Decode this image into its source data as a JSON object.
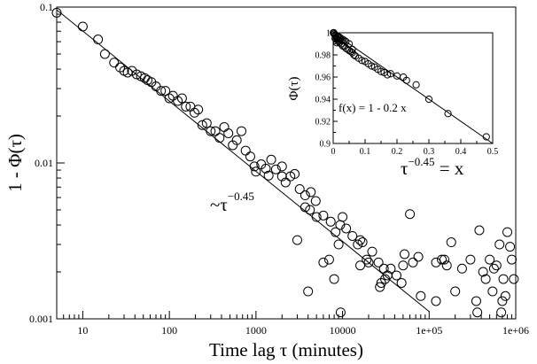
{
  "chart_data": [
    {
      "type": "scatter",
      "scale": {
        "x": "log",
        "y": "log"
      },
      "xlim": [
        5,
        1000000
      ],
      "ylim": [
        0.001,
        0.1
      ],
      "xlabel": "Time lag τ (minutes)",
      "ylabel": "1 - Φ(τ)",
      "x_ticks": [
        {
          "value": 10,
          "label": "10"
        },
        {
          "value": 100,
          "label": "100"
        },
        {
          "value": 1000,
          "label": "1000"
        },
        {
          "value": 10000,
          "label": "10000"
        },
        {
          "value": 100000,
          "label": "1e+05"
        },
        {
          "value": 1000000,
          "label": "1e+06"
        }
      ],
      "y_ticks": [
        {
          "value": 0.001,
          "label": "0.001"
        },
        {
          "value": 0.01,
          "label": "0.01"
        },
        {
          "value": 0.1,
          "label": "0.1"
        }
      ],
      "annotation": {
        "text": "~τ",
        "exponent": "−0.45"
      },
      "fit_line": {
        "amplitude": 0.198,
        "exponent": -0.45,
        "x_range": [
          5,
          100000
        ]
      },
      "series": [
        {
          "marker": "open-circle",
          "points": [
            [
              5,
              0.092
            ],
            [
              10,
              0.075
            ],
            [
              15,
              0.062
            ],
            [
              18,
              0.05
            ],
            [
              23,
              0.044
            ],
            [
              27,
              0.041
            ],
            [
              30,
              0.039
            ],
            [
              33,
              0.038
            ],
            [
              37,
              0.039
            ],
            [
              42,
              0.037
            ],
            [
              47,
              0.036
            ],
            [
              52,
              0.035
            ],
            [
              56,
              0.034
            ],
            [
              62,
              0.033
            ],
            [
              70,
              0.031
            ],
            [
              80,
              0.029
            ],
            [
              90,
              0.029
            ],
            [
              100,
              0.026
            ],
            [
              110,
              0.027
            ],
            [
              125,
              0.025
            ],
            [
              140,
              0.026
            ],
            [
              155,
              0.023
            ],
            [
              175,
              0.023
            ],
            [
              195,
              0.021
            ],
            [
              215,
              0.022
            ],
            [
              240,
              0.0175
            ],
            [
              270,
              0.018
            ],
            [
              300,
              0.016
            ],
            [
              340,
              0.016
            ],
            [
              380,
              0.0145
            ],
            [
              430,
              0.017
            ],
            [
              480,
              0.0155
            ],
            [
              540,
              0.013
            ],
            [
              600,
              0.014
            ],
            [
              680,
              0.016
            ],
            [
              760,
              0.012
            ],
            [
              860,
              0.011
            ],
            [
              960,
              0.0095
            ],
            [
              1000,
              0.0088
            ],
            [
              1150,
              0.0098
            ],
            [
              1300,
              0.0092
            ],
            [
              1500,
              0.0105
            ],
            [
              1700,
              0.0091
            ],
            [
              2000,
              0.0095
            ],
            [
              2200,
              0.0075
            ],
            [
              2500,
              0.0082
            ],
            [
              2800,
              0.0085
            ],
            [
              3200,
              0.0068
            ],
            [
              3700,
              0.0062
            ],
            [
              4300,
              0.0065
            ],
            [
              4900,
              0.0057
            ],
            [
              2000,
              0.0082
            ],
            [
              1400,
              0.0083
            ],
            [
              10000,
              0.0045
            ],
            [
              3700,
              0.0052
            ],
            [
              4200,
              0.005
            ],
            [
              5000,
              0.0045
            ],
            [
              6000,
              0.0046
            ],
            [
              7300,
              0.0042
            ],
            [
              8300,
              0.0036
            ],
            [
              9400,
              0.004
            ],
            [
              11000,
              0.0038
            ],
            [
              13000,
              0.0034
            ],
            [
              16000,
              0.0032
            ],
            [
              19000,
              0.0024
            ],
            [
              22000,
              0.0027
            ],
            [
              26000,
              0.0023
            ],
            [
              30000,
              0.0021
            ],
            [
              36000,
              0.0021
            ],
            [
              42000,
              0.0019
            ],
            [
              48000,
              0.0017
            ],
            [
              3000,
              0.0032
            ],
            [
              4000,
              0.0015
            ],
            [
              6000,
              0.0023
            ],
            [
              8000,
              0.0018
            ],
            [
              9000,
              0.003
            ],
            [
              15000,
              0.003
            ],
            [
              28000,
              0.0017
            ],
            [
              31000,
              0.0018
            ],
            [
              33000,
              0.0019
            ],
            [
              50000,
              0.0022
            ],
            [
              52000,
              0.0026
            ],
            [
              60000,
              0.0047
            ],
            [
              65000,
              0.0023
            ],
            [
              75000,
              0.0025
            ],
            [
              80000,
              0.0014
            ],
            [
              7000,
              0.0024
            ],
            [
              17000,
              0.0031
            ],
            [
              16000,
              0.0022
            ],
            [
              20000,
              0.0023
            ],
            [
              27000,
              0.0016
            ],
            [
              9500,
              0.0011
            ],
            [
              120000,
              0.0013
            ],
            [
              150000,
              0.0024
            ],
            [
              160000,
              0.0022
            ],
            [
              180000,
              0.0031
            ],
            [
              200000,
              0.0015
            ],
            [
              240000,
              0.0021
            ],
            [
              300000,
              0.0024
            ],
            [
              350000,
              0.0013
            ],
            [
              360000,
              0.0011
            ],
            [
              380000,
              0.0037
            ],
            [
              420000,
              0.002
            ],
            [
              450000,
              0.0018
            ],
            [
              500000,
              0.0024
            ],
            [
              540000,
              0.0015
            ],
            [
              560000,
              0.0021
            ],
            [
              600000,
              0.0022
            ],
            [
              680000,
              0.0011
            ],
            [
              720000,
              0.0018
            ],
            [
              760000,
              0.0014
            ],
            [
              800000,
              0.0036
            ],
            [
              860000,
              0.0029
            ],
            [
              900000,
              0.0024
            ],
            [
              950000,
              0.0018
            ],
            [
              120000,
              0.0023
            ],
            [
              140000,
              0.0024
            ],
            [
              650000,
              0.003
            ],
            [
              700000,
              0.0013
            ]
          ]
        }
      ]
    },
    {
      "type": "scatter",
      "scale": {
        "x": "linear",
        "y": "linear"
      },
      "xlim": [
        0,
        0.5
      ],
      "ylim": [
        0.9,
        1.0
      ],
      "xlabel": "τ^−0.45 = x",
      "ylabel": "Φ(τ)",
      "x_ticks": [
        {
          "value": 0,
          "label": "0"
        },
        {
          "value": 0.1,
          "label": "0.1"
        },
        {
          "value": 0.2,
          "label": "0.2"
        },
        {
          "value": 0.3,
          "label": "0.3"
        },
        {
          "value": 0.4,
          "label": "0.4"
        },
        {
          "value": 0.5,
          "label": "0.5"
        }
      ],
      "y_ticks": [
        {
          "value": 0.9,
          "label": "0.9"
        },
        {
          "value": 0.92,
          "label": "0.92"
        },
        {
          "value": 0.94,
          "label": "0.94"
        },
        {
          "value": 0.96,
          "label": "0.96"
        },
        {
          "value": 0.98,
          "label": "0.98"
        },
        {
          "value": 1.0,
          "label": "1"
        }
      ],
      "annotation": "f(x) = 1 - 0.2 x",
      "xlabel_parts": {
        "base": "τ",
        "exponent": "−0.45",
        "rest": " = x"
      },
      "fit_line": {
        "intercept": 1,
        "slope": -0.2,
        "x_range": [
          0,
          0.5
        ]
      },
      "series": [
        {
          "marker": "open-circle",
          "points": [
            [
              0.48,
              0.906
            ],
            [
              0.36,
              0.927
            ],
            [
              0.3,
              0.94
            ],
            [
              0.26,
              0.953
            ],
            [
              0.23,
              0.957
            ],
            [
              0.22,
              0.96
            ],
            [
              0.2,
              0.961
            ],
            [
              0.18,
              0.963
            ],
            [
              0.17,
              0.962
            ],
            [
              0.16,
              0.964
            ],
            [
              0.15,
              0.965
            ],
            [
              0.14,
              0.967
            ],
            [
              0.13,
              0.969
            ],
            [
              0.12,
              0.97
            ],
            [
              0.11,
              0.972
            ],
            [
              0.1,
              0.974
            ],
            [
              0.09,
              0.975
            ],
            [
              0.08,
              0.977
            ],
            [
              0.07,
              0.979
            ],
            [
              0.065,
              0.98
            ],
            [
              0.06,
              0.982
            ],
            [
              0.055,
              0.983
            ],
            [
              0.05,
              0.984
            ],
            [
              0.045,
              0.985
            ],
            [
              0.04,
              0.986
            ],
            [
              0.035,
              0.988
            ],
            [
              0.03,
              0.988
            ],
            [
              0.025,
              0.99
            ],
            [
              0.02,
              0.991
            ],
            [
              0.018,
              0.993
            ],
            [
              0.015,
              0.993
            ],
            [
              0.012,
              0.995
            ],
            [
              0.01,
              0.996
            ],
            [
              0.008,
              0.997
            ],
            [
              0.006,
              0.998
            ],
            [
              0.004,
              0.999
            ],
            [
              0.003,
              0.999
            ],
            [
              0.002,
              1.0
            ],
            [
              0.001,
              1.0
            ],
            [
              0.0005,
              1.0
            ],
            [
              0.006,
              0.995
            ],
            [
              0.009,
              0.994
            ],
            [
              0.011,
              0.991
            ],
            [
              0.014,
              0.997
            ],
            [
              0.016,
              0.996
            ],
            [
              0.02,
              0.996
            ],
            [
              0.022,
              0.995
            ],
            [
              0.027,
              0.993
            ],
            [
              0.03,
              0.994
            ],
            [
              0.035,
              0.993
            ],
            [
              0.04,
              0.992
            ],
            [
              0.05,
              0.99
            ],
            [
              0.06,
              0.985
            ]
          ]
        }
      ]
    }
  ]
}
